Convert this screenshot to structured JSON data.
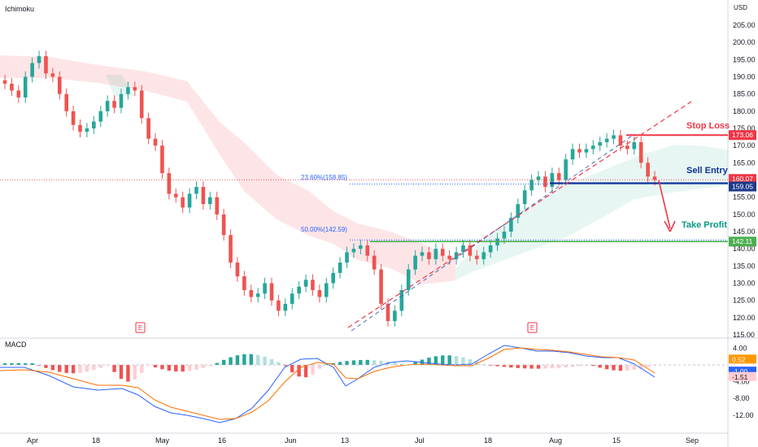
{
  "chart_data": [
    {
      "type": "candlestick",
      "indicator_label": "Ichimoku",
      "currency": "USD",
      "y_ticks": [
        "115.00",
        "120.00",
        "125.00",
        "130.00",
        "135.00",
        "140.00",
        "145.00",
        "150.00",
        "155.00",
        "160.00",
        "165.00",
        "170.00",
        "175.00",
        "180.00",
        "185.00",
        "190.00",
        "195.00",
        "200.00",
        "205.00"
      ],
      "ylim": [
        112,
        211
      ],
      "x_labels": [
        "Apr",
        "18",
        "May",
        "16",
        "Jun",
        "13",
        "Jul",
        "18",
        "Aug",
        "15",
        "Sep"
      ],
      "annotations": {
        "stop_loss": "Stop Loss",
        "sell_entry": "Sell Entry",
        "take_profit": "Take Profit",
        "fib_236": "23.60%(158.85)",
        "fib_50": "50.00%(142.59)",
        "earnings": "E"
      },
      "levels": {
        "stop_loss": 173.06,
        "last_price": 160.07,
        "sell_entry": 159.05,
        "take_profit": 142.11,
        "fib_236": 158.85,
        "fib_50": 142.59
      },
      "price_badges": [
        "173.06",
        "160.07",
        "159.05",
        "142.11"
      ],
      "colors": {
        "up": "#26a69a",
        "down": "#ef5350",
        "stop": "#f23645",
        "entry": "#0c3299",
        "profit": "#089981",
        "fib": "#2962ff"
      },
      "closes": [
        188,
        186,
        184,
        190,
        194,
        196,
        191,
        190,
        185,
        180,
        176,
        174,
        175,
        177,
        180,
        183,
        181,
        185,
        187,
        186,
        178,
        172,
        170,
        162,
        156,
        155,
        152,
        156,
        158,
        153,
        155,
        150,
        144,
        136,
        132,
        128,
        126,
        127,
        130,
        125,
        122,
        124,
        127,
        129,
        131,
        128,
        126,
        130,
        133,
        136,
        139,
        140,
        141,
        138,
        134,
        124,
        119,
        122,
        128,
        134,
        138,
        139,
        137,
        140,
        138,
        137,
        139,
        141,
        138,
        137,
        139,
        141,
        143,
        145,
        149,
        153,
        157,
        160,
        161,
        158,
        162,
        160,
        166,
        169,
        168,
        169,
        170,
        171,
        172,
        173,
        170,
        169,
        171,
        165,
        161,
        160
      ]
    },
    {
      "type": "macd",
      "indicator_label": "MACD",
      "y_ticks": [
        "4.00",
        "-4.00",
        "-8.00",
        "-12.00"
      ],
      "ylim": [
        -12.6,
        5.6
      ],
      "badges": [
        "0.52",
        "-1.00",
        "-1.51"
      ],
      "values": {
        "histogram": 0.52,
        "macd": -1.0,
        "signal": -1.51
      }
    }
  ]
}
